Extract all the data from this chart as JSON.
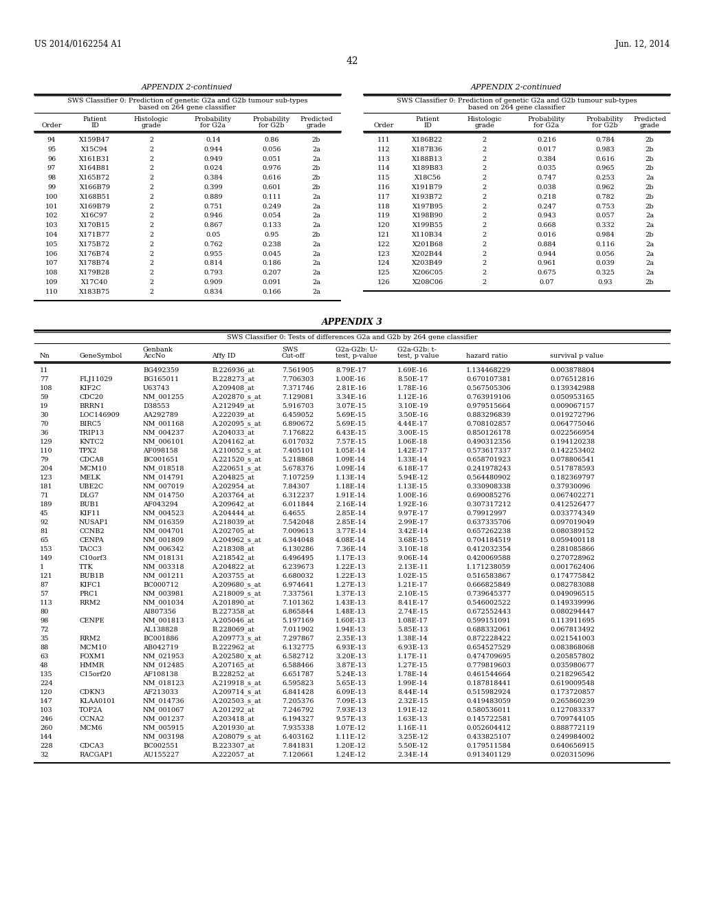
{
  "bg_color": "#ffffff",
  "header_left": "US 2014/0162254 A1",
  "header_right": "Jun. 12, 2014",
  "page_num": "42",
  "appendix2_title": "APPENDIX 2-continued",
  "appendix3_title": "APPENDIX 3",
  "table1_subtitle": "SWS Classifier 0: Prediction of genetic G2a and G2b tumour sub-types\nbased on 264 gene classifier",
  "table2_subtitle": "SWS Classifier 0: Prediction of genetic G2a and G2b tumour sub-types\nbased on 264 gene classifier",
  "table3_subtitle": "SWS Classifier 0: Tests of differences G2a and G2b by 264 gene classifier",
  "table1_data": [
    [
      "94",
      "X159B47",
      "2",
      "0.14",
      "0.86",
      "2b"
    ],
    [
      "95",
      "X15C94",
      "2",
      "0.944",
      "0.056",
      "2a"
    ],
    [
      "96",
      "X161B31",
      "2",
      "0.949",
      "0.051",
      "2a"
    ],
    [
      "97",
      "X164B81",
      "2",
      "0.024",
      "0.976",
      "2b"
    ],
    [
      "98",
      "X165B72",
      "2",
      "0.384",
      "0.616",
      "2b"
    ],
    [
      "99",
      "X166B79",
      "2",
      "0.399",
      "0.601",
      "2b"
    ],
    [
      "100",
      "X168B51",
      "2",
      "0.889",
      "0.111",
      "2a"
    ],
    [
      "101",
      "X169B79",
      "2",
      "0.751",
      "0.249",
      "2a"
    ],
    [
      "102",
      "X16C97",
      "2",
      "0.946",
      "0.054",
      "2a"
    ],
    [
      "103",
      "X170B15",
      "2",
      "0.867",
      "0.133",
      "2a"
    ],
    [
      "104",
      "X171B77",
      "2",
      "0.05",
      "0.95",
      "2b"
    ],
    [
      "105",
      "X175B72",
      "2",
      "0.762",
      "0.238",
      "2a"
    ],
    [
      "106",
      "X176B74",
      "2",
      "0.955",
      "0.045",
      "2a"
    ],
    [
      "107",
      "X178B74",
      "2",
      "0.814",
      "0.186",
      "2a"
    ],
    [
      "108",
      "X179B28",
      "2",
      "0.793",
      "0.207",
      "2a"
    ],
    [
      "109",
      "X17C40",
      "2",
      "0.909",
      "0.091",
      "2a"
    ],
    [
      "110",
      "X183B75",
      "2",
      "0.834",
      "0.166",
      "2a"
    ]
  ],
  "table2_data": [
    [
      "111",
      "X186B22",
      "2",
      "0.216",
      "0.784",
      "2b"
    ],
    [
      "112",
      "X187B36",
      "2",
      "0.017",
      "0.983",
      "2b"
    ],
    [
      "113",
      "X188B13",
      "2",
      "0.384",
      "0.616",
      "2b"
    ],
    [
      "114",
      "X189B83",
      "2",
      "0.035",
      "0.965",
      "2b"
    ],
    [
      "115",
      "X18C56",
      "2",
      "0.747",
      "0.253",
      "2a"
    ],
    [
      "116",
      "X191B79",
      "2",
      "0.038",
      "0.962",
      "2b"
    ],
    [
      "117",
      "X193B72",
      "2",
      "0.218",
      "0.782",
      "2b"
    ],
    [
      "118",
      "X197B95",
      "2",
      "0.247",
      "0.753",
      "2b"
    ],
    [
      "119",
      "X198B90",
      "2",
      "0.943",
      "0.057",
      "2a"
    ],
    [
      "120",
      "X199B55",
      "2",
      "0.668",
      "0.332",
      "2a"
    ],
    [
      "121",
      "X110B34",
      "2",
      "0.016",
      "0.984",
      "2b"
    ],
    [
      "122",
      "X201B68",
      "2",
      "0.884",
      "0.116",
      "2a"
    ],
    [
      "123",
      "X202B44",
      "2",
      "0.944",
      "0.056",
      "2a"
    ],
    [
      "124",
      "X203B49",
      "2",
      "0.961",
      "0.039",
      "2a"
    ],
    [
      "125",
      "X206C05",
      "2",
      "0.675",
      "0.325",
      "2a"
    ],
    [
      "126",
      "X208C06",
      "2",
      "0.07",
      "0.93",
      "2b"
    ]
  ],
  "table3_data": [
    [
      "11",
      "",
      "BG492359",
      "B.226936_at",
      "7.561905",
      "8.79E-17",
      "1.69E-16",
      "1.134468229",
      "0.003878804"
    ],
    [
      "77",
      "FLJ11029",
      "BG165011",
      "B.228273_at",
      "7.706303",
      "1.00E-16",
      "8.50E-17",
      "0.670107381",
      "0.076512816"
    ],
    [
      "108",
      "KIF2C",
      "U63743",
      "A.209408_at",
      "7.371746",
      "2.81E-16",
      "1.78E-16",
      "0.567505306",
      "0.139342988"
    ],
    [
      "59",
      "CDC20",
      "NM_001255",
      "A.202870_s_at",
      "7.129081",
      "3.34E-16",
      "1.12E-16",
      "0.763919106",
      "0.050953165"
    ],
    [
      "19",
      "BRRN1",
      "D38553",
      "A.212949_at",
      "5.916703",
      "3.07E-15",
      "3.10E-19",
      "0.979515664",
      "0.009067157"
    ],
    [
      "30",
      "LOC146909",
      "AA292789",
      "A.222039_at",
      "6.459052",
      "5.69E-15",
      "3.50E-16",
      "0.883296839",
      "0.019272796"
    ],
    [
      "70",
      "BIRC5",
      "NM_001168",
      "A.202095_s_at",
      "6.890672",
      "5.69E-15",
      "4.44E-17",
      "0.708102857",
      "0.064775046"
    ],
    [
      "36",
      "TRIP13",
      "NM_004237",
      "A.204033_at",
      "7.176822",
      "6.43E-15",
      "3.00E-15",
      "0.850126178",
      "0.022566954"
    ],
    [
      "129",
      "KNTC2",
      "NM_006101",
      "A.204162_at",
      "6.017032",
      "7.57E-15",
      "1.06E-18",
      "0.490312356",
      "0.194120238"
    ],
    [
      "110",
      "TPX2",
      "AF098158",
      "A.210052_s_at",
      "7.405101",
      "1.05E-14",
      "1.42E-17",
      "0.573617337",
      "0.142253402"
    ],
    [
      "79",
      "CDCA8",
      "BC001651",
      "A.221520_s_at",
      "5.218868",
      "1.09E-14",
      "1.33E-14",
      "0.658701923",
      "0.078806541"
    ],
    [
      "204",
      "MCM10",
      "NM_018518",
      "A.220651_s_at",
      "5.678376",
      "1.09E-14",
      "6.18E-17",
      "0.241978243",
      "0.517878593"
    ],
    [
      "123",
      "MELK",
      "NM_014791",
      "A.204825_at",
      "7.107259",
      "1.13E-14",
      "5.94E-12",
      "0.564480902",
      "0.182369797"
    ],
    [
      "181",
      "UBE2C",
      "NM_007019",
      "A.202954_at",
      "7.84307",
      "1.18E-14",
      "1.13E-15",
      "0.330908338",
      "0.37930096"
    ],
    [
      "71",
      "DLG7",
      "NM_014750",
      "A.203764_at",
      "6.312237",
      "1.91E-14",
      "1.00E-16",
      "0.690085276",
      "0.067402271"
    ],
    [
      "189",
      "BUB1",
      "AF043294",
      "A.209642_at",
      "6.011844",
      "2.16E-14",
      "1.92E-16",
      "0.307317212",
      "0.412526477"
    ],
    [
      "45",
      "KIF11",
      "NM_004523",
      "A.204444_at",
      "6.4655",
      "2.85E-14",
      "9.97E-17",
      "0.79912997",
      "0.033774349"
    ],
    [
      "92",
      "NUSAP1",
      "NM_016359",
      "A.218039_at",
      "7.542048",
      "2.85E-14",
      "2.99E-17",
      "0.637335706",
      "0.097019049"
    ],
    [
      "81",
      "CCNB2",
      "NM_004701",
      "A.202705_at",
      "7.009613",
      "3.77E-14",
      "3.42E-14",
      "0.657262238",
      "0.080389152"
    ],
    [
      "65",
      "CENPA",
      "NM_001809",
      "A.204962_s_at",
      "6.344048",
      "4.08E-14",
      "3.68E-15",
      "0.704184519",
      "0.059400118"
    ],
    [
      "153",
      "TACC3",
      "NM_006342",
      "A.218308_at",
      "6.130286",
      "7.36E-14",
      "3.10E-18",
      "0.412032354",
      "0.281085866"
    ],
    [
      "149",
      "C10orf3",
      "NM_018131",
      "A.218542_at",
      "6.496495",
      "1.17E-13",
      "9.06E-14",
      "0.420069588",
      "0.270728962"
    ],
    [
      "1",
      "TTK",
      "NM_003318",
      "A.204822_at",
      "6.239673",
      "1.22E-13",
      "2.13E-11",
      "1.171238059",
      "0.001762406"
    ],
    [
      "121",
      "BUB1B",
      "NM_001211",
      "A.203755_at",
      "6.680032",
      "1.22E-13",
      "1.02E-15",
      "0.516583867",
      "0.174775842"
    ],
    [
      "87",
      "KIFC1",
      "BC000712",
      "A.209680_s_at",
      "6.974641",
      "1.27E-13",
      "1.21E-17",
      "0.666825849",
      "0.082783088"
    ],
    [
      "57",
      "PRC1",
      "NM_003981",
      "A.218009_s_at",
      "7.337561",
      "1.37E-13",
      "2.10E-15",
      "0.739645377",
      "0.049096515"
    ],
    [
      "113",
      "RRM2",
      "NM_001034",
      "A.201890_at",
      "7.101362",
      "1.43E-13",
      "8.41E-17",
      "0.546002522",
      "0.149339996"
    ],
    [
      "80",
      "",
      "AI807356",
      "B.227358_at",
      "6.865844",
      "1.48E-13",
      "2.74E-15",
      "0.672552443",
      "0.080294447"
    ],
    [
      "98",
      "CENPE",
      "NM_001813",
      "A.205046_at",
      "5.197169",
      "1.60E-13",
      "1.08E-17",
      "0.599151091",
      "0.113911695"
    ],
    [
      "72",
      "",
      "AL138828",
      "B.228069_at",
      "7.011902",
      "1.94E-13",
      "5.85E-13",
      "0.688332061",
      "0.067813492"
    ],
    [
      "35",
      "RRM2",
      "BC001886",
      "A.209773_s_at",
      "7.297867",
      "2.35E-13",
      "1.38E-14",
      "0.872228422",
      "0.021541003"
    ],
    [
      "88",
      "MCM10",
      "AB042719",
      "B.222962_at",
      "6.132775",
      "6.93E-13",
      "6.93E-13",
      "0.654527529",
      "0.083868068"
    ],
    [
      "63",
      "FOXM1",
      "NM_021953",
      "A.202580_x_at",
      "6.582712",
      "3.20E-13",
      "1.17E-11",
      "0.474709695",
      "0.205857802"
    ],
    [
      "48",
      "HMMR",
      "NM_012485",
      "A.207165_at",
      "6.588466",
      "3.87E-13",
      "1.27E-15",
      "0.779819603",
      "0.035980677"
    ],
    [
      "135",
      "C15orf20",
      "AF108138",
      "B.228252_at",
      "6.651787",
      "5.24E-13",
      "1.78E-14",
      "0.461544664",
      "0.218296542"
    ],
    [
      "224",
      "",
      "NM_018123",
      "A.219918_s_at",
      "6.595823",
      "5.65E-13",
      "1.99E-14",
      "0.187818441",
      "0.619009548"
    ],
    [
      "120",
      "CDKN3",
      "AF213033",
      "A.209714_s_at",
      "6.841428",
      "6.09E-13",
      "8.44E-14",
      "0.515982924",
      "0.173720857"
    ],
    [
      "147",
      "KLAA0101",
      "NM_014736",
      "A.202503_s_at",
      "7.205376",
      "7.09E-13",
      "2.32E-15",
      "0.419483059",
      "0.265860239"
    ],
    [
      "103",
      "TOP2A",
      "NM_001067",
      "A.201292_at",
      "7.246792",
      "7.93E-13",
      "1.91E-12",
      "0.580536011",
      "0.127083337"
    ],
    [
      "246",
      "CCNA2",
      "NM_001237",
      "A.203418_at",
      "6.194327",
      "9.57E-13",
      "1.63E-13",
      "0.145722581",
      "0.709744105"
    ],
    [
      "260",
      "MCM6",
      "NM_005915",
      "A.201930_at",
      "7.935338",
      "1.07E-12",
      "1.16E-11",
      "0.052604412",
      "0.888772119"
    ],
    [
      "144",
      "",
      "NM_003198",
      "A.208079_s_at",
      "6.403162",
      "1.11E-12",
      "3.25E-12",
      "0.433825107",
      "0.249984002"
    ],
    [
      "228",
      "CDCA3",
      "BC002551",
      "B.223307_at",
      "7.841831",
      "1.20E-12",
      "5.50E-12",
      "0.179511584",
      "0.640656915"
    ],
    [
      "32",
      "RACGAP1",
      "AU155227",
      "A.222057_at",
      "7.120661",
      "1.24E-12",
      "2.34E-14",
      "0.913401129",
      "0.020315096"
    ]
  ]
}
